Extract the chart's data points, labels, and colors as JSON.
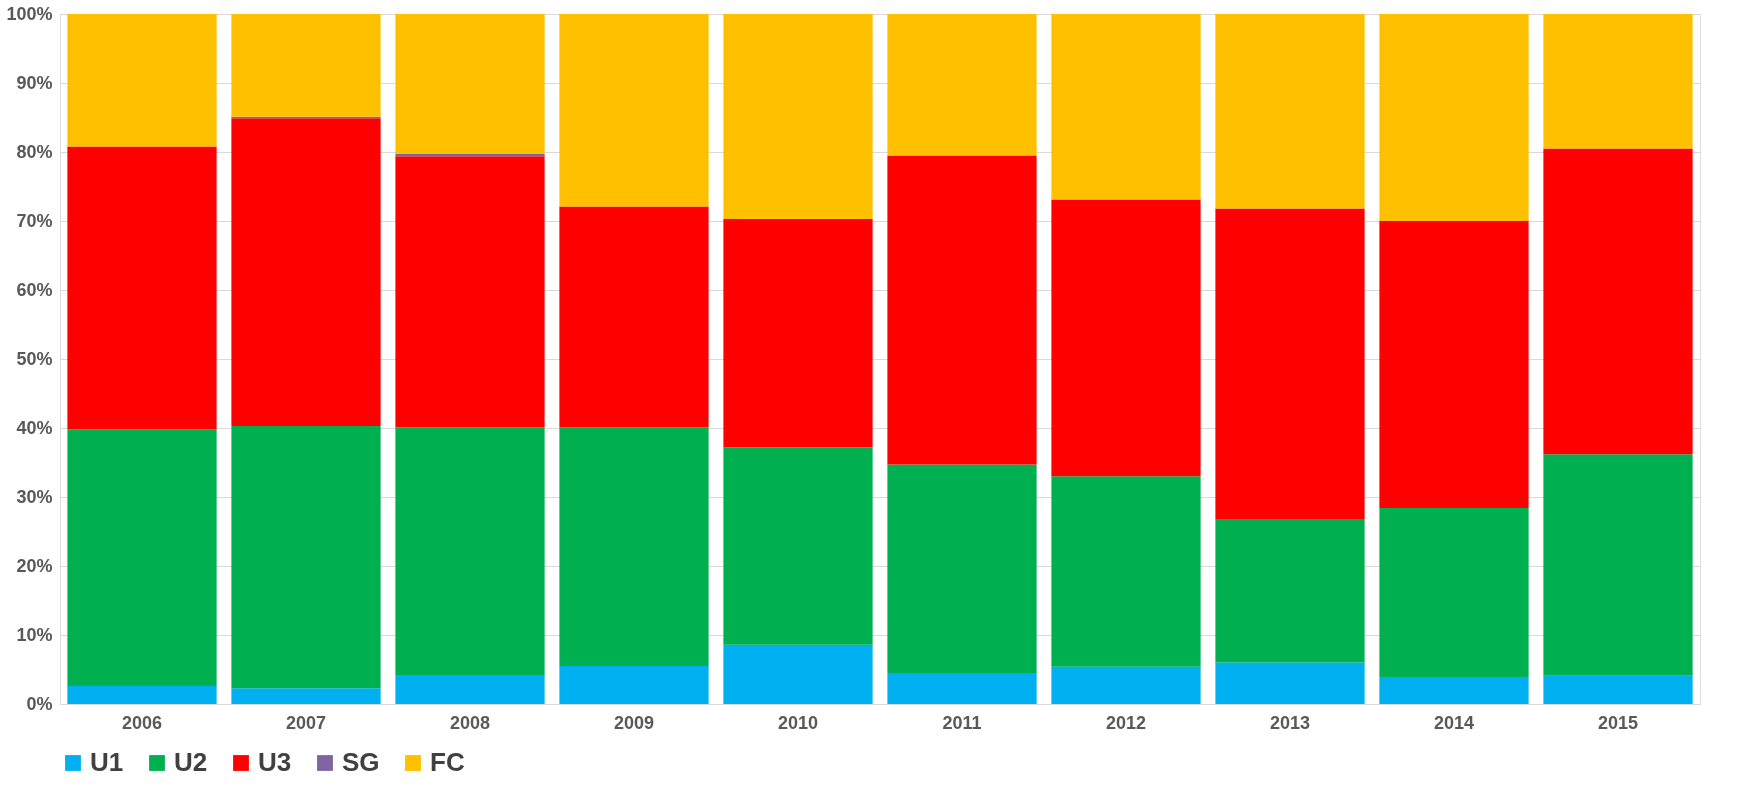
{
  "chart_data": {
    "type": "bar",
    "stacked": true,
    "categories": [
      "2006",
      "2007",
      "2008",
      "2009",
      "2010",
      "2011",
      "2012",
      "2013",
      "2014",
      "2015"
    ],
    "series": [
      {
        "name": "U1",
        "color": "#00b0f0",
        "values": [
          2.6,
          2.3,
          4.2,
          5.5,
          8.6,
          4.5,
          5.4,
          6.0,
          3.9,
          4.1
        ]
      },
      {
        "name": "U2",
        "color": "#00b050",
        "values": [
          37.2,
          38.0,
          35.9,
          34.6,
          28.6,
          30.2,
          27.6,
          20.8,
          24.5,
          32.1
        ]
      },
      {
        "name": "U3",
        "color": "#ff0000",
        "values": [
          41.0,
          44.6,
          39.3,
          32.0,
          33.1,
          44.8,
          40.1,
          45.0,
          41.6,
          44.3
        ]
      },
      {
        "name": "SG",
        "color": "#8064a2",
        "values": [
          0,
          0.2,
          0.4,
          0,
          0,
          0,
          0,
          0,
          0,
          0
        ]
      },
      {
        "name": "FC",
        "color": "#ffc000",
        "values": [
          19.2,
          14.9,
          20.2,
          27.9,
          29.7,
          20.5,
          26.9,
          28.2,
          30.0,
          19.5
        ]
      }
    ],
    "ylim": [
      0,
      100
    ],
    "yticks": [
      {
        "value": 0,
        "label": "0%"
      },
      {
        "value": 10,
        "label": "10%"
      },
      {
        "value": 20,
        "label": "20%"
      },
      {
        "value": 30,
        "label": "30%"
      },
      {
        "value": 40,
        "label": "40%"
      },
      {
        "value": 50,
        "label": "50%"
      },
      {
        "value": 60,
        "label": "60%"
      },
      {
        "value": 70,
        "label": "70%"
      },
      {
        "value": 80,
        "label": "80%"
      },
      {
        "value": 90,
        "label": "90%"
      },
      {
        "value": 100,
        "label": "100%"
      }
    ],
    "grid": "y",
    "legend": "bottom"
  }
}
